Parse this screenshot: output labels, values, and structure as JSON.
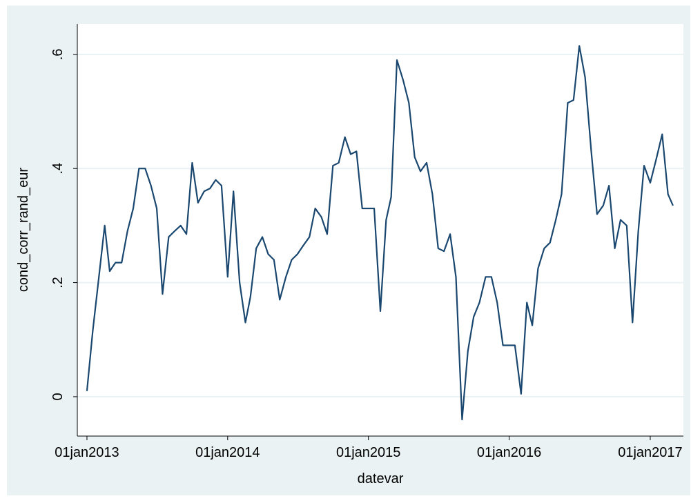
{
  "chart_data": {
    "type": "line",
    "x_label": "datevar",
    "y_label": "cond_corr_rand_eur",
    "xlim": [
      "2012-12-07",
      "2017-03-28"
    ],
    "xticks": [
      {
        "value": "2013-01-01",
        "label": "01jan2013"
      },
      {
        "value": "2014-01-01",
        "label": "01jan2014"
      },
      {
        "value": "2015-01-01",
        "label": "01jan2015"
      },
      {
        "value": "2016-01-01",
        "label": "01jan2016"
      },
      {
        "value": "2017-01-01",
        "label": "01jan2017"
      }
    ],
    "ylim": [
      -0.069,
      0.653
    ],
    "yticks": [
      0,
      {
        "value": 0.2,
        "label": ".2"
      },
      {
        "value": 0.4,
        "label": ".4"
      },
      {
        "value": 0.6,
        "label": ".6"
      }
    ],
    "grid": true,
    "series": [
      {
        "name": "cond_corr_rand_eur",
        "color": "#1a476f",
        "x": [
          "2013-01-01",
          "2013-01-16",
          "2013-02-01",
          "2013-02-16",
          "2013-03-01",
          "2013-03-16",
          "2013-04-01",
          "2013-04-16",
          "2013-05-01",
          "2013-05-16",
          "2013-06-01",
          "2013-06-16",
          "2013-07-01",
          "2013-07-16",
          "2013-08-01",
          "2013-08-16",
          "2013-09-01",
          "2013-09-16",
          "2013-10-01",
          "2013-10-16",
          "2013-11-01",
          "2013-11-16",
          "2013-12-01",
          "2013-12-16",
          "2014-01-01",
          "2014-01-16",
          "2014-02-01",
          "2014-02-16",
          "2014-03-01",
          "2014-03-16",
          "2014-04-01",
          "2014-04-16",
          "2014-05-01",
          "2014-05-16",
          "2014-06-01",
          "2014-06-16",
          "2014-07-01",
          "2014-07-16",
          "2014-08-01",
          "2014-08-16",
          "2014-09-01",
          "2014-09-16",
          "2014-10-01",
          "2014-10-16",
          "2014-11-01",
          "2014-11-16",
          "2014-12-01",
          "2014-12-16",
          "2015-01-01",
          "2015-01-16",
          "2015-02-01",
          "2015-02-16",
          "2015-03-01",
          "2015-03-16",
          "2015-04-01",
          "2015-04-16",
          "2015-05-01",
          "2015-05-16",
          "2015-06-01",
          "2015-06-16",
          "2015-07-01",
          "2015-07-16",
          "2015-08-01",
          "2015-08-16",
          "2015-09-01",
          "2015-09-16",
          "2015-10-01",
          "2015-10-16",
          "2015-11-01",
          "2015-11-16",
          "2015-12-01",
          "2015-12-16",
          "2016-01-01",
          "2016-01-16",
          "2016-02-01",
          "2016-02-16",
          "2016-03-01",
          "2016-03-16",
          "2016-04-01",
          "2016-04-16",
          "2016-05-01",
          "2016-05-16",
          "2016-06-01",
          "2016-06-16",
          "2016-07-01",
          "2016-07-16",
          "2016-08-01",
          "2016-08-16",
          "2016-09-01",
          "2016-09-16",
          "2016-10-01",
          "2016-10-16",
          "2016-11-01",
          "2016-11-16",
          "2016-12-01",
          "2016-12-16",
          "2017-01-01",
          "2017-01-16",
          "2017-02-01",
          "2017-02-16",
          "2017-03-01"
        ],
        "values": [
          0.01,
          0.115,
          0.21,
          0.3,
          0.22,
          0.235,
          0.235,
          0.29,
          0.33,
          0.4,
          0.4,
          0.37,
          0.33,
          0.18,
          0.28,
          0.29,
          0.3,
          0.285,
          0.41,
          0.34,
          0.36,
          0.365,
          0.38,
          0.37,
          0.21,
          0.36,
          0.2,
          0.13,
          0.175,
          0.26,
          0.28,
          0.25,
          0.24,
          0.17,
          0.21,
          0.24,
          0.25,
          0.265,
          0.28,
          0.33,
          0.315,
          0.285,
          0.405,
          0.41,
          0.455,
          0.425,
          0.43,
          0.33,
          0.33,
          0.33,
          0.15,
          0.31,
          0.35,
          0.59,
          0.555,
          0.515,
          0.42,
          0.395,
          0.41,
          0.355,
          0.26,
          0.255,
          0.285,
          0.21,
          -0.04,
          0.08,
          0.14,
          0.165,
          0.21,
          0.21,
          0.165,
          0.09,
          0.09,
          0.09,
          0.005,
          0.165,
          0.125,
          0.225,
          0.26,
          0.27,
          0.31,
          0.355,
          0.515,
          0.52,
          0.615,
          0.56,
          0.43,
          0.32,
          0.335,
          0.37,
          0.26,
          0.31,
          0.3,
          0.13,
          0.29,
          0.405,
          0.375,
          0.415,
          0.46,
          0.355,
          0.335
        ]
      }
    ]
  }
}
